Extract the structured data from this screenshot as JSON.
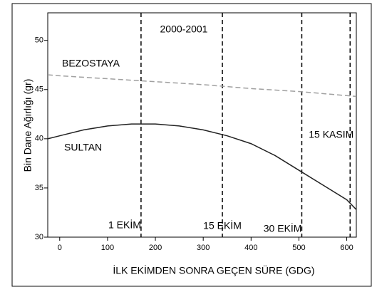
{
  "chart_data": {
    "type": "line",
    "xlabel": "İLK EKİMDEN SONRA GEÇEN SÜRE (GDG)",
    "ylabel": "Bin Dane Ağırlığı (gr)",
    "annotation": "2000-2001",
    "xlim": [
      -25,
      620
    ],
    "xticks": [
      0,
      100,
      200,
      300,
      400,
      500,
      600
    ],
    "ylim": [
      30,
      52.8
    ],
    "yticks": [
      30,
      35,
      40,
      45,
      50
    ],
    "grid": false,
    "vlines": [
      {
        "x": 170,
        "label": "1 EKİM"
      },
      {
        "x": 340,
        "label": "15 EKİM"
      },
      {
        "x": 506,
        "label": "30 EKİM"
      },
      {
        "x": 607,
        "label": "15 KASIM"
      }
    ],
    "series": [
      {
        "name": "BEZOSTAYA",
        "color": "#a0a0a0",
        "dashed": true,
        "x": [
          -25,
          0,
          100,
          200,
          300,
          400,
          500,
          620
        ],
        "values": [
          46.5,
          46.4,
          46.1,
          45.8,
          45.5,
          45.1,
          44.8,
          44.3
        ]
      },
      {
        "name": "SULTAN",
        "color": "#222222",
        "dashed": false,
        "x": [
          -25,
          0,
          50,
          100,
          150,
          200,
          250,
          300,
          350,
          400,
          450,
          500,
          550,
          600,
          620
        ],
        "values": [
          40.0,
          40.3,
          40.9,
          41.3,
          41.5,
          41.5,
          41.3,
          40.9,
          40.3,
          39.5,
          38.3,
          36.8,
          35.3,
          33.8,
          32.8
        ]
      }
    ]
  }
}
